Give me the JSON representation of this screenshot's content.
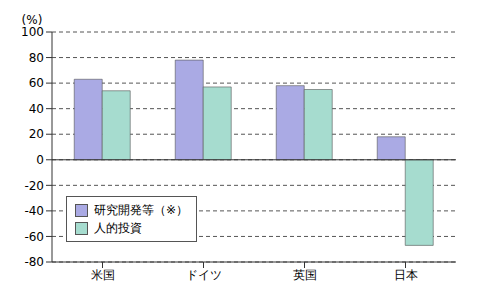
{
  "chart_data": {
    "type": "bar",
    "ylabel": "(%)",
    "categories": [
      "米国",
      "ドイツ",
      "英国",
      "日本"
    ],
    "series": [
      {
        "name": "研究開発等（※）",
        "color": "#aaaae4",
        "values": [
          63,
          78,
          58,
          18
        ]
      },
      {
        "name": "人的投資",
        "color": "#a6dccf",
        "values": [
          54,
          57,
          55,
          -67
        ]
      }
    ],
    "ylim": [
      -80,
      100
    ],
    "yticks": [
      -80,
      -60,
      -40,
      -20,
      0,
      20,
      40,
      60,
      80,
      100
    ],
    "grid": true,
    "legend": "lower left"
  }
}
